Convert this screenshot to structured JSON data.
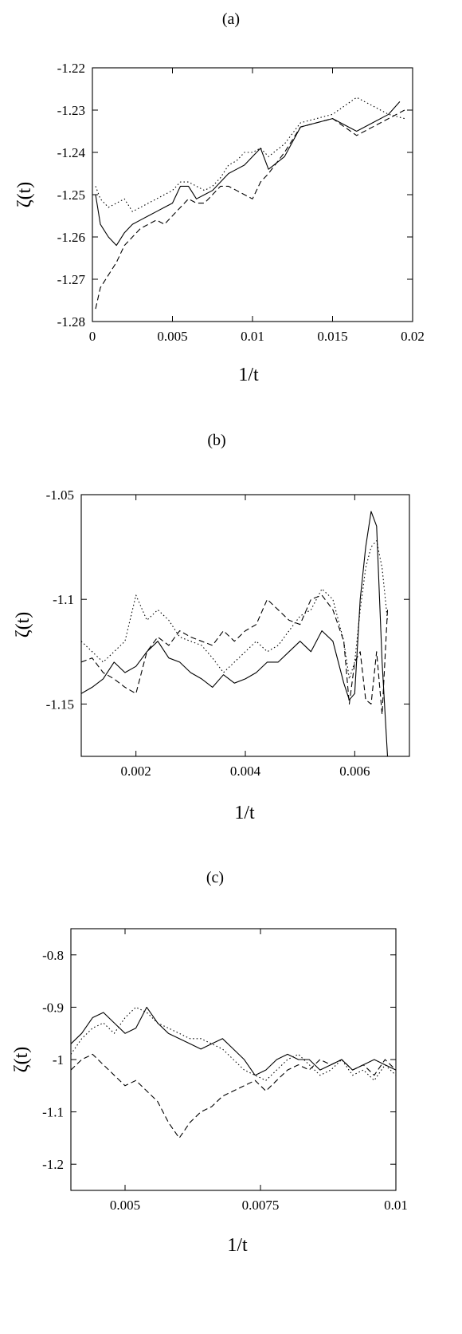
{
  "chart_data": [
    {
      "type": "line",
      "panel_label": "(a)",
      "xlabel": "1/t",
      "ylabel": "ζ(t)",
      "xlim": [
        0,
        0.02
      ],
      "ylim": [
        -1.28,
        -1.22
      ],
      "xticks": [
        0,
        0.005,
        0.01,
        0.015,
        0.02
      ],
      "xtick_labels": [
        "0",
        "0.005",
        "0.01",
        "0.015",
        "0.02"
      ],
      "yticks": [
        -1.28,
        -1.27,
        -1.26,
        -1.25,
        -1.24,
        -1.23,
        -1.22
      ],
      "ytick_labels": [
        "-1.28",
        "-1.27",
        "-1.26",
        "-1.25",
        "-1.24",
        "-1.23",
        "-1.22"
      ],
      "series": [
        {
          "style": "solid",
          "x": [
            0.0002,
            0.0005,
            0.001,
            0.0015,
            0.002,
            0.0025,
            0.003,
            0.0035,
            0.004,
            0.0045,
            0.005,
            0.0055,
            0.006,
            0.0065,
            0.007,
            0.0075,
            0.008,
            0.0085,
            0.009,
            0.0095,
            0.01,
            0.0105,
            0.011,
            0.012,
            0.013,
            0.014,
            0.015,
            0.0165,
            0.0175,
            0.0185,
            0.0192
          ],
          "y": [
            -1.25,
            -1.257,
            -1.26,
            -1.262,
            -1.259,
            -1.257,
            -1.256,
            -1.255,
            -1.254,
            -1.253,
            -1.252,
            -1.248,
            -1.248,
            -1.251,
            -1.25,
            -1.249,
            -1.247,
            -1.245,
            -1.244,
            -1.243,
            -1.241,
            -1.239,
            -1.244,
            -1.241,
            -1.234,
            -1.233,
            -1.232,
            -1.235,
            -1.233,
            -1.231,
            -1.228
          ]
        },
        {
          "style": "dashed",
          "x": [
            0.0002,
            0.0005,
            0.001,
            0.0015,
            0.002,
            0.0025,
            0.003,
            0.0035,
            0.004,
            0.0045,
            0.005,
            0.0055,
            0.006,
            0.0065,
            0.007,
            0.0075,
            0.008,
            0.0085,
            0.009,
            0.0095,
            0.01,
            0.0105,
            0.011,
            0.012,
            0.013,
            0.014,
            0.015,
            0.0165,
            0.0175,
            0.0185,
            0.0195
          ],
          "y": [
            -1.277,
            -1.272,
            -1.269,
            -1.266,
            -1.262,
            -1.26,
            -1.258,
            -1.257,
            -1.256,
            -1.257,
            -1.255,
            -1.253,
            -1.251,
            -1.252,
            -1.252,
            -1.25,
            -1.248,
            -1.248,
            -1.249,
            -1.25,
            -1.251,
            -1.247,
            -1.245,
            -1.24,
            -1.234,
            -1.233,
            -1.232,
            -1.236,
            -1.234,
            -1.232,
            -1.23
          ]
        },
        {
          "style": "dotted",
          "x": [
            0.0002,
            0.0005,
            0.001,
            0.0015,
            0.002,
            0.0025,
            0.003,
            0.0035,
            0.004,
            0.0045,
            0.005,
            0.0055,
            0.006,
            0.0065,
            0.007,
            0.0075,
            0.008,
            0.0085,
            0.009,
            0.0095,
            0.01,
            0.0105,
            0.011,
            0.012,
            0.013,
            0.014,
            0.015,
            0.0165,
            0.0175,
            0.0185,
            0.0195
          ],
          "y": [
            -1.248,
            -1.251,
            -1.253,
            -1.252,
            -1.251,
            -1.254,
            -1.253,
            -1.252,
            -1.251,
            -1.25,
            -1.249,
            -1.247,
            -1.247,
            -1.248,
            -1.249,
            -1.248,
            -1.246,
            -1.243,
            -1.242,
            -1.24,
            -1.24,
            -1.239,
            -1.241,
            -1.238,
            -1.233,
            -1.232,
            -1.231,
            -1.227,
            -1.229,
            -1.231,
            -1.232
          ]
        }
      ]
    },
    {
      "type": "line",
      "panel_label": "(b)",
      "xlabel": "1/t",
      "ylabel": "ζ(t)",
      "xlim": [
        0.001,
        0.007
      ],
      "ylim": [
        -1.175,
        -1.05
      ],
      "xticks": [
        0.002,
        0.004,
        0.006
      ],
      "xtick_labels": [
        "0.002",
        "0.004",
        "0.006"
      ],
      "yticks": [
        -1.15,
        -1.1,
        -1.05
      ],
      "ytick_labels": [
        "-1.15",
        "-1.1",
        "-1.05"
      ],
      "series": [
        {
          "style": "solid",
          "x": [
            0.001,
            0.0012,
            0.0014,
            0.0016,
            0.0018,
            0.002,
            0.0022,
            0.0024,
            0.0026,
            0.0028,
            0.003,
            0.0032,
            0.0034,
            0.0036,
            0.0038,
            0.004,
            0.0042,
            0.0044,
            0.0046,
            0.0048,
            0.005,
            0.0052,
            0.0054,
            0.0056,
            0.0058,
            0.0059,
            0.006,
            0.0061,
            0.0062,
            0.0063,
            0.0064,
            0.0065,
            0.0066
          ],
          "y": [
            -1.145,
            -1.142,
            -1.138,
            -1.13,
            -1.135,
            -1.132,
            -1.125,
            -1.12,
            -1.128,
            -1.13,
            -1.135,
            -1.138,
            -1.142,
            -1.136,
            -1.14,
            -1.138,
            -1.135,
            -1.13,
            -1.13,
            -1.125,
            -1.12,
            -1.125,
            -1.115,
            -1.12,
            -1.14,
            -1.148,
            -1.145,
            -1.1,
            -1.075,
            -1.058,
            -1.065,
            -1.13,
            -1.175
          ]
        },
        {
          "style": "dashed",
          "x": [
            0.001,
            0.0012,
            0.0014,
            0.0016,
            0.0018,
            0.002,
            0.0022,
            0.0024,
            0.0026,
            0.0028,
            0.003,
            0.0032,
            0.0034,
            0.0036,
            0.0038,
            0.004,
            0.0042,
            0.0044,
            0.0046,
            0.0048,
            0.005,
            0.0052,
            0.0054,
            0.0056,
            0.0058,
            0.0059,
            0.006,
            0.0061,
            0.0062,
            0.0063,
            0.0064,
            0.0065,
            0.0066
          ],
          "y": [
            -1.13,
            -1.128,
            -1.135,
            -1.138,
            -1.142,
            -1.145,
            -1.125,
            -1.118,
            -1.122,
            -1.115,
            -1.118,
            -1.12,
            -1.122,
            -1.115,
            -1.12,
            -1.115,
            -1.112,
            -1.1,
            -1.105,
            -1.11,
            -1.112,
            -1.1,
            -1.098,
            -1.105,
            -1.12,
            -1.15,
            -1.13,
            -1.125,
            -1.148,
            -1.15,
            -1.125,
            -1.155,
            -1.105
          ]
        },
        {
          "style": "dotted",
          "x": [
            0.001,
            0.0012,
            0.0014,
            0.0016,
            0.0018,
            0.002,
            0.0022,
            0.0024,
            0.0026,
            0.0028,
            0.003,
            0.0032,
            0.0034,
            0.0036,
            0.0038,
            0.004,
            0.0042,
            0.0044,
            0.0046,
            0.0048,
            0.005,
            0.0052,
            0.0054,
            0.0056,
            0.0058,
            0.0059,
            0.006,
            0.0061,
            0.0062,
            0.0063,
            0.0064,
            0.0065,
            0.0066
          ],
          "y": [
            -1.12,
            -1.125,
            -1.13,
            -1.125,
            -1.12,
            -1.098,
            -1.11,
            -1.105,
            -1.11,
            -1.118,
            -1.12,
            -1.122,
            -1.128,
            -1.135,
            -1.13,
            -1.125,
            -1.12,
            -1.125,
            -1.122,
            -1.115,
            -1.108,
            -1.105,
            -1.095,
            -1.1,
            -1.12,
            -1.138,
            -1.13,
            -1.105,
            -1.085,
            -1.075,
            -1.072,
            -1.085,
            -1.11
          ]
        }
      ]
    },
    {
      "type": "line",
      "panel_label": "(c)",
      "xlabel": "1/t",
      "ylabel": "ζ(t)",
      "xlim": [
        0.004,
        0.01
      ],
      "ylim": [
        -1.25,
        -0.75
      ],
      "xticks": [
        0.005,
        0.0075,
        0.01
      ],
      "xtick_labels": [
        "0.005",
        "0.0075",
        "0.01"
      ],
      "yticks": [
        -1.2,
        -1.1,
        -1.0,
        -0.9,
        -0.8
      ],
      "ytick_labels": [
        "-1.2",
        "-1.1",
        "-1",
        "-0.9",
        "-0.8"
      ],
      "series": [
        {
          "style": "solid",
          "x": [
            0.004,
            0.0042,
            0.0044,
            0.0046,
            0.0048,
            0.005,
            0.0052,
            0.0054,
            0.0056,
            0.0058,
            0.006,
            0.0062,
            0.0064,
            0.0066,
            0.0068,
            0.007,
            0.0072,
            0.0074,
            0.0076,
            0.0078,
            0.008,
            0.0082,
            0.0084,
            0.0086,
            0.0088,
            0.009,
            0.0092,
            0.0094,
            0.0096,
            0.0098,
            0.01
          ],
          "y": [
            -0.97,
            -0.95,
            -0.92,
            -0.91,
            -0.93,
            -0.95,
            -0.94,
            -0.9,
            -0.93,
            -0.95,
            -0.96,
            -0.97,
            -0.98,
            -0.97,
            -0.96,
            -0.98,
            -1.0,
            -1.03,
            -1.02,
            -1.0,
            -0.99,
            -1.0,
            -1.0,
            -1.02,
            -1.01,
            -1.0,
            -1.02,
            -1.01,
            -1.0,
            -1.01,
            -1.02
          ]
        },
        {
          "style": "dashed",
          "x": [
            0.004,
            0.0042,
            0.0044,
            0.0046,
            0.0048,
            0.005,
            0.0052,
            0.0054,
            0.0056,
            0.0058,
            0.006,
            0.0062,
            0.0064,
            0.0066,
            0.0068,
            0.007,
            0.0072,
            0.0074,
            0.0076,
            0.0078,
            0.008,
            0.0082,
            0.0084,
            0.0086,
            0.0088,
            0.009,
            0.0092,
            0.0094,
            0.0096,
            0.0098,
            0.01
          ],
          "y": [
            -1.02,
            -1.0,
            -0.99,
            -1.01,
            -1.03,
            -1.05,
            -1.04,
            -1.06,
            -1.08,
            -1.12,
            -1.15,
            -1.12,
            -1.1,
            -1.09,
            -1.07,
            -1.06,
            -1.05,
            -1.04,
            -1.06,
            -1.04,
            -1.02,
            -1.01,
            -1.02,
            -1.0,
            -1.01,
            -1.0,
            -1.02,
            -1.01,
            -1.03,
            -1.0,
            -1.02
          ]
        },
        {
          "style": "dotted",
          "x": [
            0.004,
            0.0042,
            0.0044,
            0.0046,
            0.0048,
            0.005,
            0.0052,
            0.0054,
            0.0056,
            0.0058,
            0.006,
            0.0062,
            0.0064,
            0.0066,
            0.0068,
            0.007,
            0.0072,
            0.0074,
            0.0076,
            0.0078,
            0.008,
            0.0082,
            0.0084,
            0.0086,
            0.0088,
            0.009,
            0.0092,
            0.0094,
            0.0096,
            0.0098,
            0.01
          ],
          "y": [
            -0.99,
            -0.96,
            -0.94,
            -0.93,
            -0.95,
            -0.92,
            -0.9,
            -0.91,
            -0.93,
            -0.94,
            -0.95,
            -0.96,
            -0.96,
            -0.97,
            -0.98,
            -1.0,
            -1.02,
            -1.03,
            -1.04,
            -1.02,
            -1.0,
            -0.99,
            -1.01,
            -1.03,
            -1.02,
            -1.0,
            -1.03,
            -1.02,
            -1.04,
            -1.01,
            -1.03
          ]
        }
      ]
    }
  ]
}
